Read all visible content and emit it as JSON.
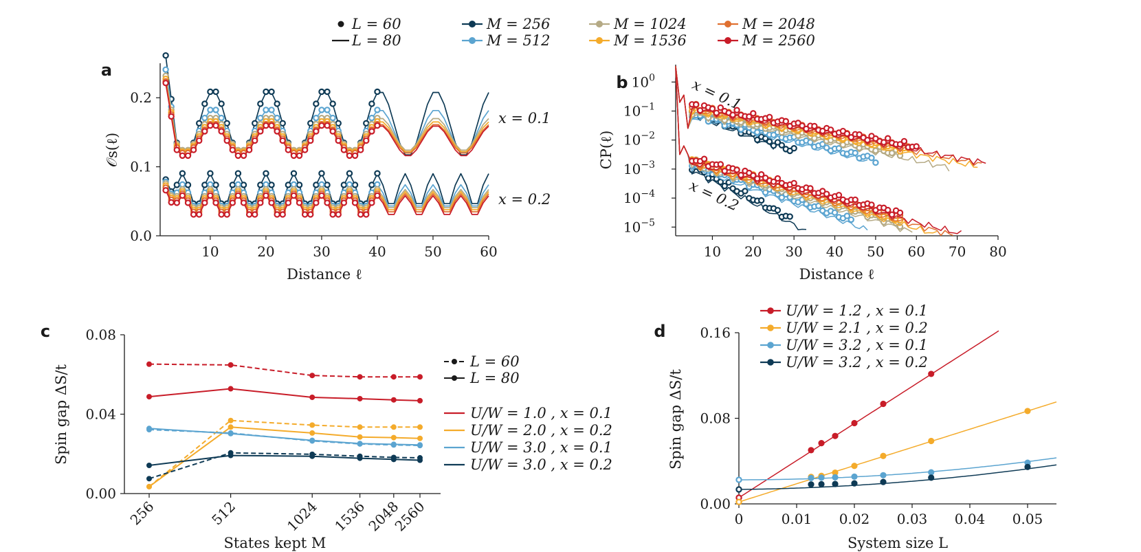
{
  "colors": {
    "M256": "#0e3a55",
    "M512": "#5ba4d0",
    "M1024": "#b5aa85",
    "M1536": "#f4ab2b",
    "M2048": "#e07030",
    "M2560": "#c81c28",
    "red": "#c81c28",
    "orange": "#f4ab2b",
    "lightblue": "#5ba4d0",
    "darkblue": "#0e3a55"
  },
  "top_legend": {
    "l60": "L = 60",
    "l80": "L = 80",
    "m256": "M = 256",
    "m512": "M = 512",
    "m1024": "M = 1024",
    "m1536": "M = 1536",
    "m2048": "M = 2048",
    "m2560": "M = 2560"
  },
  "chart_data": [
    {
      "panel": "a",
      "type": "line",
      "xlabel": "Distance ℓ",
      "ylabel": "𝒪s(ℓ)",
      "xlim": [
        1,
        60
      ],
      "ylim": [
        0,
        0.25
      ],
      "xticks": [
        "10",
        "20",
        "30",
        "40",
        "50",
        "60"
      ],
      "yticks": [
        "0.0",
        "0.1",
        "0.2"
      ],
      "annotations": [
        "x = 0.1",
        "x = 0.2"
      ],
      "model": "Curves follow oscillation with period 10 (x=0.1) and 5 (x=0.2); points shown for L=60 up to ℓ=40, lines for L=80 up to ℓ=60",
      "x01_series": [
        {
          "name": "M = 256",
          "peak": 0.21,
          "trough": 0.115
        },
        {
          "name": "M = 512",
          "peak": 0.183,
          "trough": 0.12
        },
        {
          "name": "M = 1024",
          "peak": 0.171,
          "trough": 0.123
        },
        {
          "name": "M = 1536",
          "peak": 0.166,
          "trough": 0.121
        },
        {
          "name": "M = 2048",
          "peak": 0.162,
          "trough": 0.119
        },
        {
          "name": "M = 2560",
          "peak": 0.16,
          "trough": 0.115
        }
      ],
      "x02_series": [
        {
          "name": "M = 256",
          "peak": 0.09,
          "trough": 0.042
        },
        {
          "name": "M = 512",
          "peak": 0.074,
          "trough": 0.04
        },
        {
          "name": "M = 1024",
          "peak": 0.067,
          "trough": 0.038
        },
        {
          "name": "M = 1536",
          "peak": 0.064,
          "trough": 0.035
        },
        {
          "name": "M = 2048",
          "peak": 0.061,
          "trough": 0.032
        },
        {
          "name": "M = 2560",
          "peak": 0.058,
          "trough": 0.028
        }
      ]
    },
    {
      "panel": "b",
      "type": "line",
      "xlabel": "Distance ℓ",
      "ylabel": "CP(ℓ)",
      "scale": "log",
      "xlim": [
        1,
        80
      ],
      "ylim": [
        -5.3,
        0.6
      ],
      "xticks": [
        "10",
        "20",
        "30",
        "40",
        "50",
        "60",
        "70",
        "80"
      ],
      "yticks_exp": [
        "0",
        "−1",
        "−2",
        "−3",
        "−4",
        "−5"
      ],
      "annotations": [
        "x = 0.1",
        "x = 0.2"
      ],
      "x01_series": [
        {
          "name": "M = 256",
          "log10_at_5": -1.0,
          "decay_per_unit": 0.055,
          "end_points": 30,
          "end_line": 25
        },
        {
          "name": "M = 512",
          "log10_at_5": -1.1,
          "decay_per_unit": 0.035,
          "end_points": 50,
          "end_line": 48
        },
        {
          "name": "M = 1024",
          "log10_at_5": -1.0,
          "decay_per_unit": 0.029,
          "end_points": 56,
          "end_line": 68
        },
        {
          "name": "M = 1536",
          "log10_at_5": -0.9,
          "decay_per_unit": 0.027,
          "end_points": 58,
          "end_line": 75
        },
        {
          "name": "M = 2048",
          "log10_at_5": -0.85,
          "decay_per_unit": 0.026,
          "end_points": 58,
          "end_line": 76
        },
        {
          "name": "M = 2560",
          "log10_at_5": -0.8,
          "decay_per_unit": 0.026,
          "end_points": 60,
          "end_line": 77
        }
      ],
      "x02_series": [
        {
          "name": "M = 256",
          "log10_at_5": -2.9,
          "decay_per_unit": 0.075,
          "end": 33
        },
        {
          "name": "M = 512",
          "log10_at_5": -2.8,
          "decay_per_unit": 0.05,
          "end": 48
        },
        {
          "name": "M = 1024",
          "log10_at_5": -2.75,
          "decay_per_unit": 0.042,
          "end": 62
        },
        {
          "name": "M = 1536",
          "log10_at_5": -2.7,
          "decay_per_unit": 0.04,
          "end": 70
        },
        {
          "name": "M = 2048",
          "log10_at_5": -2.7,
          "decay_per_unit": 0.038,
          "end": 74
        },
        {
          "name": "M = 2560",
          "log10_at_5": -2.65,
          "decay_per_unit": 0.037,
          "end": 75
        }
      ]
    },
    {
      "panel": "c",
      "type": "line",
      "xlabel": "States kept M",
      "ylabel": "Spin gap ΔS/t",
      "categories": [
        "256",
        "512",
        "1024",
        "1536",
        "2048",
        "2560"
      ],
      "ylim": [
        0,
        0.08
      ],
      "yticks": [
        "0.00",
        "0.04",
        "0.08"
      ],
      "legend_style": [
        "L = 60",
        "L = 80"
      ],
      "series": [
        {
          "name": "U/W = 1.0 , x = 0.1",
          "color": "red",
          "L60": [
            0.0652,
            0.0648,
            0.0595,
            0.0588,
            0.0588,
            0.0588
          ],
          "L80": [
            0.0488,
            0.0528,
            0.0485,
            0.0478,
            0.0472,
            0.0468
          ]
        },
        {
          "name": "U/W = 2.0 , x = 0.2",
          "color": "orange",
          "L60": [
            0.0035,
            0.0368,
            0.0345,
            0.0335,
            0.0335,
            0.0335
          ],
          "L80": [
            0.0035,
            0.0335,
            0.0305,
            0.0285,
            0.0282,
            0.0278
          ]
        },
        {
          "name": "U/W = 3.0 , x = 0.1",
          "color": "lightblue",
          "L60": [
            0.0322,
            0.0305,
            0.0265,
            0.025,
            0.0245,
            0.0242
          ],
          "L80": [
            0.0328,
            0.0302,
            0.0268,
            0.0252,
            0.0248,
            0.0245
          ]
        },
        {
          "name": "U/W = 3.0 , x = 0.2",
          "color": "darkblue",
          "L60": [
            0.0075,
            0.0205,
            0.0198,
            0.0188,
            0.0182,
            0.018
          ],
          "L80": [
            0.0142,
            0.0192,
            0.0188,
            0.0178,
            0.0172,
            0.0168
          ]
        }
      ]
    },
    {
      "panel": "d",
      "type": "line",
      "xlabel": "System size L",
      "ylabel": "Spin gap ΔS/t",
      "xlim": [
        0,
        0.055
      ],
      "ylim": [
        0,
        0.16
      ],
      "xticks": [
        "0",
        "0.01",
        "0.02",
        "0.03",
        "0.04",
        "0.05"
      ],
      "yticks": [
        "0.00",
        "0.08",
        "0.16"
      ],
      "series": [
        {
          "name": "U/W = 1.2 , x = 0.1",
          "color": "red",
          "x": [
            0.0125,
            0.01429,
            0.01667,
            0.02,
            0.025,
            0.0333
          ],
          "y": [
            0.0502,
            0.0568,
            0.0635,
            0.0755,
            0.0935,
            0.1215
          ],
          "x0": 0.0058,
          "fit": [
            0.0058,
            3.465
          ]
        },
        {
          "name": "U/W = 2.1 , x = 0.2",
          "color": "orange",
          "x": [
            0.0125,
            0.01429,
            0.01667,
            0.02,
            0.025,
            0.0333,
            0.05
          ],
          "y": [
            0.0252,
            0.0262,
            0.0292,
            0.0355,
            0.0448,
            0.0588,
            0.0868
          ],
          "x0": 0.0018,
          "fit": [
            0.0018,
            1.7
          ]
        },
        {
          "name": "U/W = 3.2 , x = 0.1",
          "color": "lightblue",
          "x": [
            0.0125,
            0.01429,
            0.01667,
            0.02,
            0.025,
            0.0333,
            0.05
          ],
          "y": [
            0.0242,
            0.0245,
            0.0248,
            0.0255,
            0.0268,
            0.0295,
            0.0385
          ],
          "x0": 0.0225,
          "fit": [
            0.0225,
            0.0,
            6.8
          ]
        },
        {
          "name": "U/W = 3.2 , x = 0.2",
          "color": "darkblue",
          "x": [
            0.0125,
            0.01429,
            0.01667,
            0.02,
            0.025,
            0.0333,
            0.05
          ],
          "y": [
            0.0182,
            0.0184,
            0.0186,
            0.0192,
            0.0205,
            0.0245,
            0.0345
          ],
          "x0": 0.0135,
          "fit": [
            0.0135,
            0.06,
            6.5
          ]
        }
      ]
    }
  ],
  "labels": {
    "a": "a",
    "b": "b",
    "c": "c",
    "d": "d",
    "a_xlabel": "Distance ℓ",
    "b_xlabel": "Distance ℓ",
    "c_xlabel": "States kept M",
    "d_xlabel": "System size L",
    "a_ylabel": "𝒪s(ℓ)",
    "b_ylabel": "CP(ℓ)",
    "c_ylabel": "Spin gap ΔS/t",
    "d_ylabel": "Spin gap ΔS/t",
    "ann_x01": "x = 0.1",
    "ann_x02": "x = 0.2"
  }
}
